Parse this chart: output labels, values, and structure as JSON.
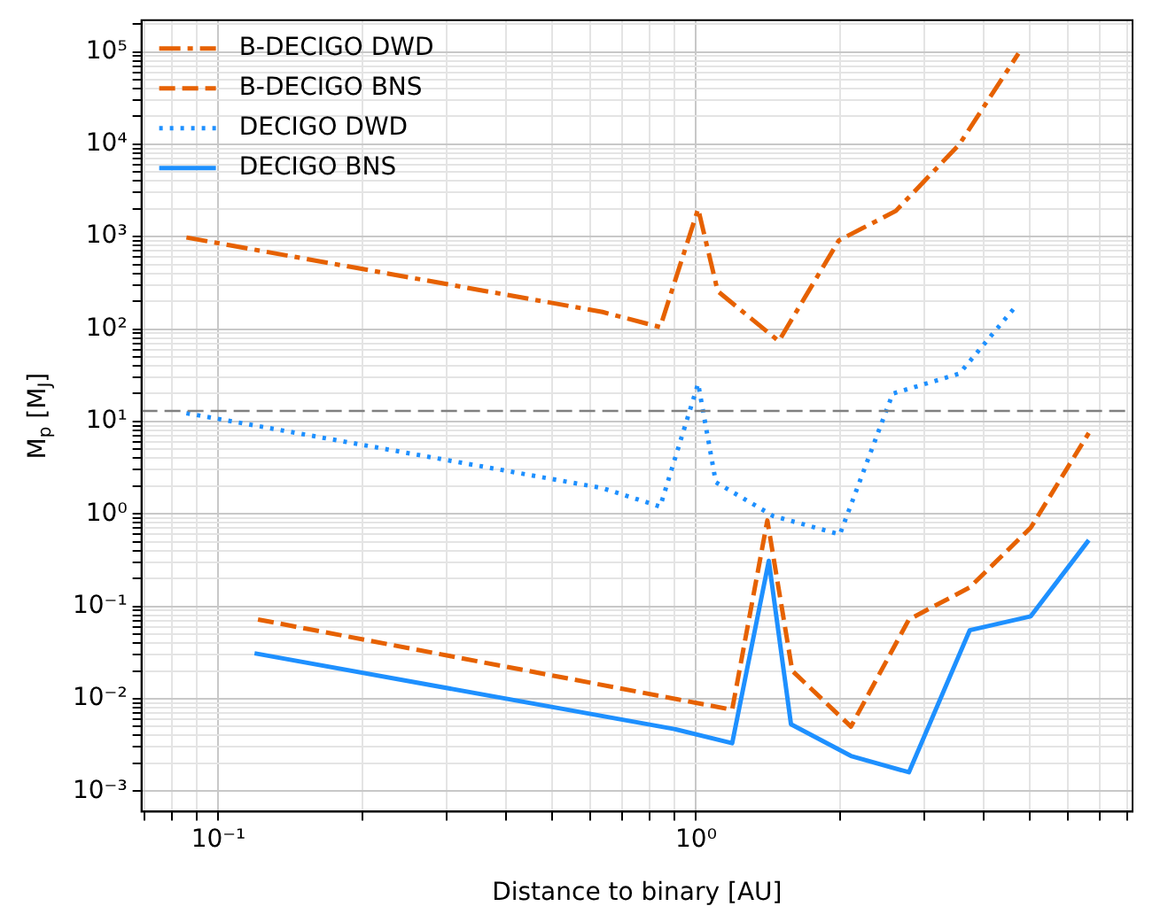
{
  "chart_data": {
    "type": "line",
    "xlabel": "Distance to binary [AU]",
    "ylabel": "M$_{p}$ [M$_{J}$]",
    "log": "xy",
    "grid": true,
    "legend": "top left",
    "marker": "none",
    "xlim": [
      0.069,
      8.2
    ],
    "ylim": [
      0.0006,
      220000
    ],
    "xticks": [
      {
        "value": 0.07,
        "label": null
      },
      {
        "value": 0.08,
        "label": null
      },
      {
        "value": 0.09,
        "label": null
      },
      {
        "value": 0.1,
        "label": "10⁻¹"
      },
      {
        "value": 0.2,
        "label": null
      },
      {
        "value": 0.3,
        "label": null
      },
      {
        "value": 0.4,
        "label": null
      },
      {
        "value": 0.5,
        "label": null
      },
      {
        "value": 0.6,
        "label": null
      },
      {
        "value": 0.7,
        "label": null
      },
      {
        "value": 0.8,
        "label": null
      },
      {
        "value": 0.9,
        "label": null
      },
      {
        "value": 1,
        "label": "10⁰"
      },
      {
        "value": 2,
        "label": null
      },
      {
        "value": 3,
        "label": null
      },
      {
        "value": 4,
        "label": null
      },
      {
        "value": 5,
        "label": null
      },
      {
        "value": 6,
        "label": null
      },
      {
        "value": 7,
        "label": null
      },
      {
        "value": 8,
        "label": null
      }
    ],
    "yticks": [
      {
        "value": 0.001,
        "label": "10⁻³"
      },
      {
        "value": 0.002,
        "label": null
      },
      {
        "value": 0.003,
        "label": null
      },
      {
        "value": 0.004,
        "label": null
      },
      {
        "value": 0.005,
        "label": null
      },
      {
        "value": 0.006,
        "label": null
      },
      {
        "value": 0.007,
        "label": null
      },
      {
        "value": 0.008,
        "label": null
      },
      {
        "value": 0.009,
        "label": null
      },
      {
        "value": 0.01,
        "label": "10⁻²"
      },
      {
        "value": 0.02,
        "label": null
      },
      {
        "value": 0.03,
        "label": null
      },
      {
        "value": 0.04,
        "label": null
      },
      {
        "value": 0.05,
        "label": null
      },
      {
        "value": 0.06,
        "label": null
      },
      {
        "value": 0.07,
        "label": null
      },
      {
        "value": 0.08,
        "label": null
      },
      {
        "value": 0.09,
        "label": null
      },
      {
        "value": 0.1,
        "label": "10⁻¹"
      },
      {
        "value": 0.2,
        "label": null
      },
      {
        "value": 0.3,
        "label": null
      },
      {
        "value": 0.4,
        "label": null
      },
      {
        "value": 0.5,
        "label": null
      },
      {
        "value": 0.6,
        "label": null
      },
      {
        "value": 0.7,
        "label": null
      },
      {
        "value": 0.8,
        "label": null
      },
      {
        "value": 0.9,
        "label": null
      },
      {
        "value": 1,
        "label": "10⁰"
      },
      {
        "value": 2,
        "label": null
      },
      {
        "value": 3,
        "label": null
      },
      {
        "value": 4,
        "label": null
      },
      {
        "value": 5,
        "label": null
      },
      {
        "value": 6,
        "label": null
      },
      {
        "value": 7,
        "label": null
      },
      {
        "value": 8,
        "label": null
      },
      {
        "value": 9,
        "label": null
      },
      {
        "value": 10,
        "label": "10¹"
      },
      {
        "value": 20,
        "label": null
      },
      {
        "value": 30,
        "label": null
      },
      {
        "value": 40,
        "label": null
      },
      {
        "value": 50,
        "label": null
      },
      {
        "value": 60,
        "label": null
      },
      {
        "value": 70,
        "label": null
      },
      {
        "value": 80,
        "label": null
      },
      {
        "value": 90,
        "label": null
      },
      {
        "value": 100,
        "label": "10²"
      },
      {
        "value": 200,
        "label": null
      },
      {
        "value": 300,
        "label": null
      },
      {
        "value": 400,
        "label": null
      },
      {
        "value": 500,
        "label": null
      },
      {
        "value": 600,
        "label": null
      },
      {
        "value": 700,
        "label": null
      },
      {
        "value": 800,
        "label": null
      },
      {
        "value": 900,
        "label": null
      },
      {
        "value": 1000,
        "label": "10³"
      },
      {
        "value": 2000,
        "label": null
      },
      {
        "value": 3000,
        "label": null
      },
      {
        "value": 4000,
        "label": null
      },
      {
        "value": 5000,
        "label": null
      },
      {
        "value": 6000,
        "label": null
      },
      {
        "value": 7000,
        "label": null
      },
      {
        "value": 8000,
        "label": null
      },
      {
        "value": 9000,
        "label": null
      },
      {
        "value": 10000,
        "label": "10⁴"
      },
      {
        "value": 20000,
        "label": null
      },
      {
        "value": 30000,
        "label": null
      },
      {
        "value": 40000,
        "label": null
      },
      {
        "value": 50000,
        "label": null
      },
      {
        "value": 60000,
        "label": null
      },
      {
        "value": 70000,
        "label": null
      },
      {
        "value": 80000,
        "label": null
      },
      {
        "value": 90000,
        "label": null
      },
      {
        "value": 100000,
        "label": "10⁵"
      },
      {
        "value": 200000,
        "label": null
      }
    ],
    "ref_lines": [
      {
        "axis": "y",
        "value": 13,
        "color": "#808080",
        "line_style": "dashed"
      }
    ],
    "series": [
      {
        "name": "B-DECIGO DWD",
        "color": "#e66100",
        "line_style": "dashdot",
        "x": [
          0.0857,
          0.637,
          0.841,
          1.01,
          1.11,
          1.49,
          1.99,
          2.62,
          3.56,
          4.73
        ],
        "values": [
          980,
          153,
          105,
          2000,
          257,
          74,
          910,
          1900,
          10000,
          96000
        ]
      },
      {
        "name": "B-DECIGO BNS",
        "color": "#e66100",
        "line_style": "dashed",
        "x": [
          0.121,
          1.19,
          1.41,
          1.59,
          2.11,
          2.79,
          3.74,
          5.02,
          6.64
        ],
        "values": [
          0.072,
          0.0076,
          0.85,
          0.02,
          0.005,
          0.072,
          0.16,
          0.71,
          7.5
        ]
      },
      {
        "name": "DECIGO DWD",
        "color": "#1e90ff",
        "line_style": "dotted",
        "x": [
          0.0857,
          0.637,
          0.841,
          1.01,
          1.1,
          1.45,
          2.0,
          2.58,
          3.56,
          4.66
        ],
        "values": [
          12.3,
          1.9,
          1.2,
          25.7,
          2.2,
          0.95,
          0.6,
          20,
          33,
          174
        ]
      },
      {
        "name": "DECIGO BNS",
        "color": "#1e90ff",
        "line_style": "solid",
        "x": [
          0.119,
          0.9,
          1.19,
          1.42,
          1.58,
          2.11,
          2.79,
          3.74,
          5.02,
          6.64
        ],
        "values": [
          0.031,
          0.0047,
          0.0033,
          0.31,
          0.0053,
          0.0024,
          0.0016,
          0.055,
          0.078,
          0.52
        ]
      }
    ]
  }
}
